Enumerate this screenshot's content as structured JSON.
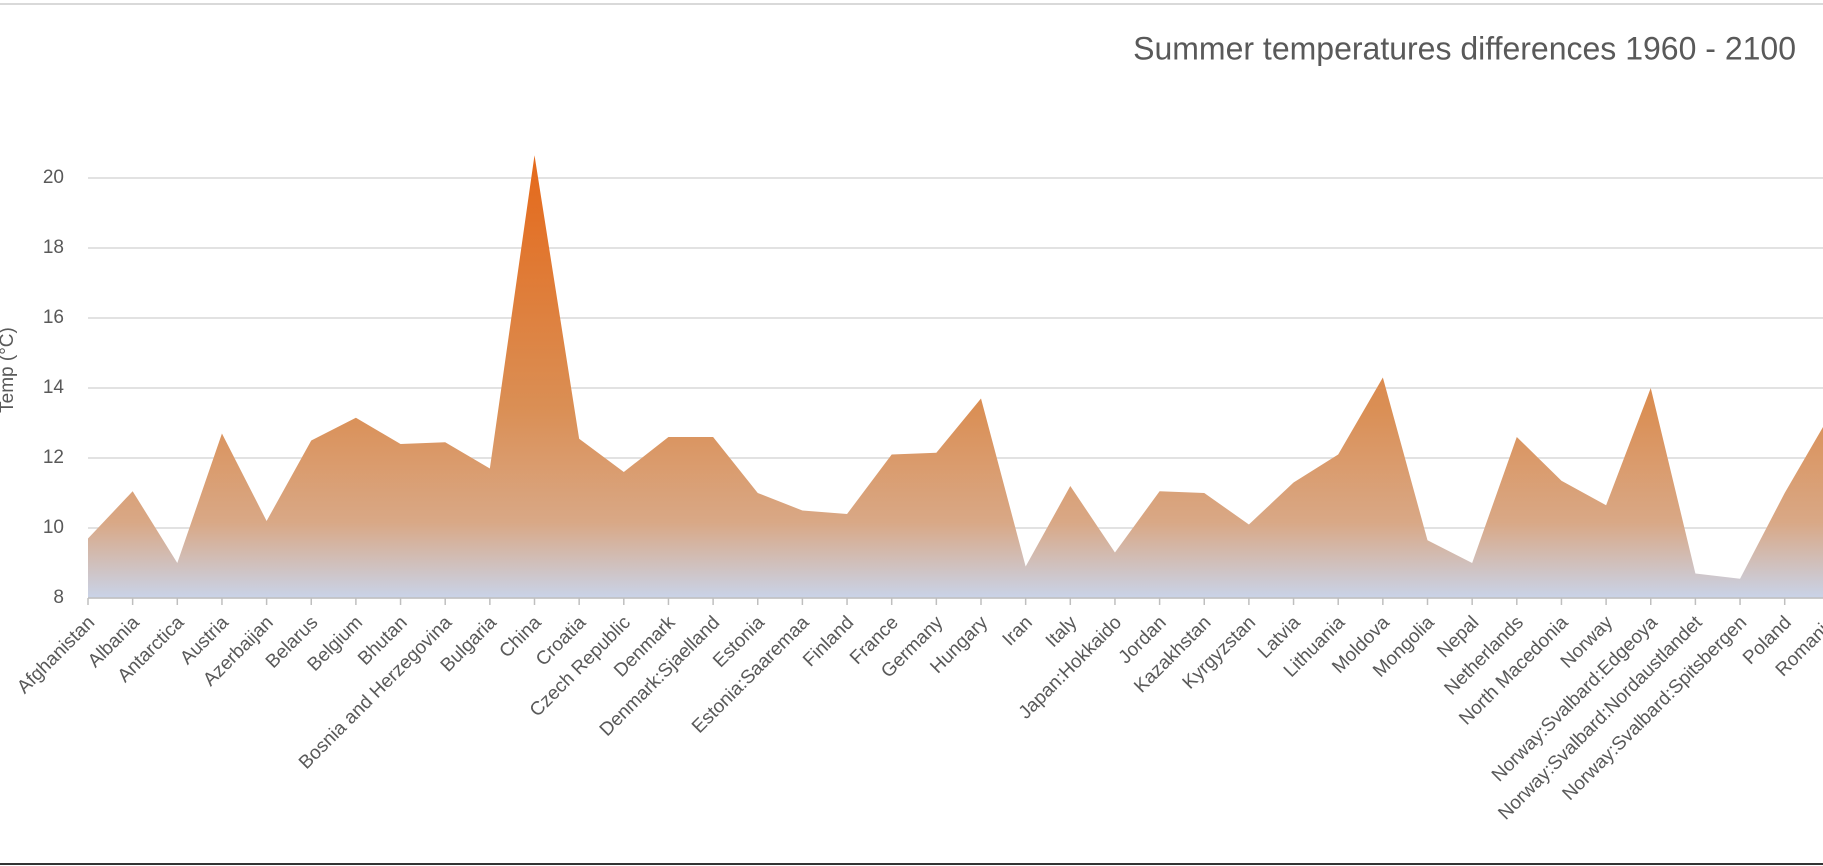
{
  "chart_data": {
    "type": "area",
    "title": "Summer temperatures differences 1960 - 2100",
    "y_label": "Temp (°C)",
    "categories": [
      "Afghanistan",
      "Albania",
      "Antarctica",
      "Austria",
      "Azerbaijan",
      "Belarus",
      "Belgium",
      "Bhutan",
      "Bosnia and Herzegovina",
      "Bulgaria",
      "China",
      "Croatia",
      "Czech Republic",
      "Denmark",
      "Denmark:Sjaelland",
      "Estonia",
      "Estonia:Saaremaa",
      "Finland",
      "France",
      "Germany",
      "Hungary",
      "Iran",
      "Italy",
      "Japan:Hokkaido",
      "Jordan",
      "Kazakhstan",
      "Kyrgyzstan",
      "Latvia",
      "Lithuania",
      "Moldova",
      "Mongolia",
      "Nepal",
      "Netherlands",
      "North Macedonia",
      "Norway",
      "Norway:Svalbard:Edgeoya",
      "Norway:Svalbard:Nordaustlandet",
      "Norway:Svalbard:Spitsbergen",
      "Poland",
      "Romania"
    ],
    "values": [
      9.7,
      11.05,
      9.0,
      12.7,
      10.2,
      12.5,
      13.15,
      12.4,
      12.45,
      11.7,
      20.65,
      12.55,
      11.6,
      12.6,
      12.6,
      11.0,
      10.5,
      10.4,
      12.1,
      12.15,
      13.7,
      8.9,
      11.2,
      9.3,
      11.05,
      11.0,
      10.1,
      11.3,
      12.1,
      14.3,
      9.65,
      9.0,
      12.6,
      11.35,
      10.65,
      14.0,
      8.7,
      8.55,
      11.0,
      13.2
    ],
    "color": "#e46c1f",
    "ylim": [
      8,
      20
    ],
    "yticks": [
      8,
      10,
      12,
      14,
      16,
      18,
      20
    ],
    "grid": true
  }
}
